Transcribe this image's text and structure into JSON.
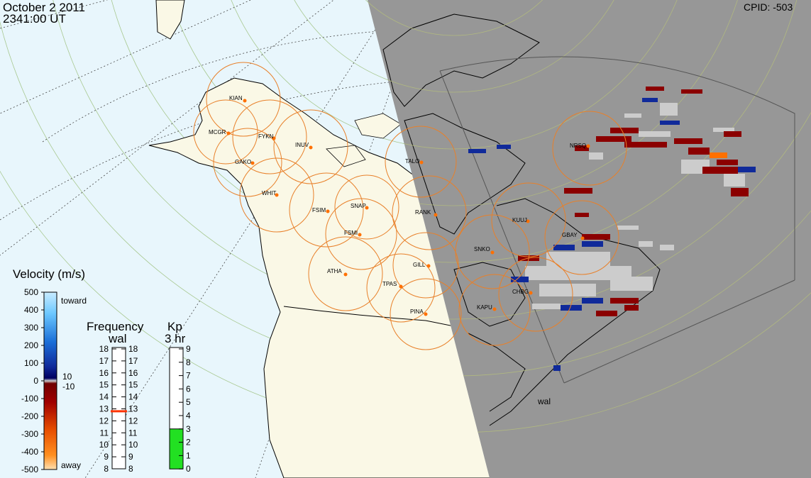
{
  "header": {
    "date": "October  2 2011",
    "time": "2341:00 UT",
    "cpid": "CPID:  -503"
  },
  "colors": {
    "night": "#979797",
    "day_land": "#faf8e6",
    "ocean": "#e8f6fc",
    "fov_circle": "#e8802a",
    "site_dot": "#ff7000",
    "kp_fill": "#22e022",
    "freq_marker": "#ff3300"
  },
  "stations": [
    {
      "code": "KIAN"
    },
    {
      "code": "MCGR"
    },
    {
      "code": "FYKN"
    },
    {
      "code": "INUV"
    },
    {
      "code": "GAKO"
    },
    {
      "code": "WHIT"
    },
    {
      "code": "FSIM"
    },
    {
      "code": "SNAP"
    },
    {
      "code": "FSMI"
    },
    {
      "code": "TALO"
    },
    {
      "code": "RANK"
    },
    {
      "code": "KUUJ"
    },
    {
      "code": "NRSQ"
    },
    {
      "code": "GBAY"
    },
    {
      "code": "SNKO"
    },
    {
      "code": "GILL"
    },
    {
      "code": "ATHA"
    },
    {
      "code": "TPAS"
    },
    {
      "code": "CHBG"
    },
    {
      "code": "KAPU"
    },
    {
      "code": "PINA"
    }
  ],
  "radar_label": "wal",
  "velocity_scale": {
    "title": "Velocity (m/s)",
    "ticks": [
      "500",
      "400",
      "300",
      "200",
      "100",
      "0",
      "-100",
      "-200",
      "-300",
      "-400",
      "-500"
    ],
    "toward": "toward",
    "away": "away",
    "threshold_pos": "10",
    "threshold_neg": "-10"
  },
  "frequency_scale": {
    "title": "Frequency",
    "radar": "wal",
    "ticks": [
      "18",
      "17",
      "16",
      "15",
      "14",
      "13",
      "12",
      "11",
      "10",
      "9",
      "8"
    ],
    "current": 12.8
  },
  "kp_scale": {
    "title": "Kp",
    "period": "3 hr",
    "ticks": [
      "9",
      "8",
      "7",
      "6",
      "5",
      "4",
      "3",
      "2",
      "1",
      "0"
    ],
    "value": 3
  }
}
